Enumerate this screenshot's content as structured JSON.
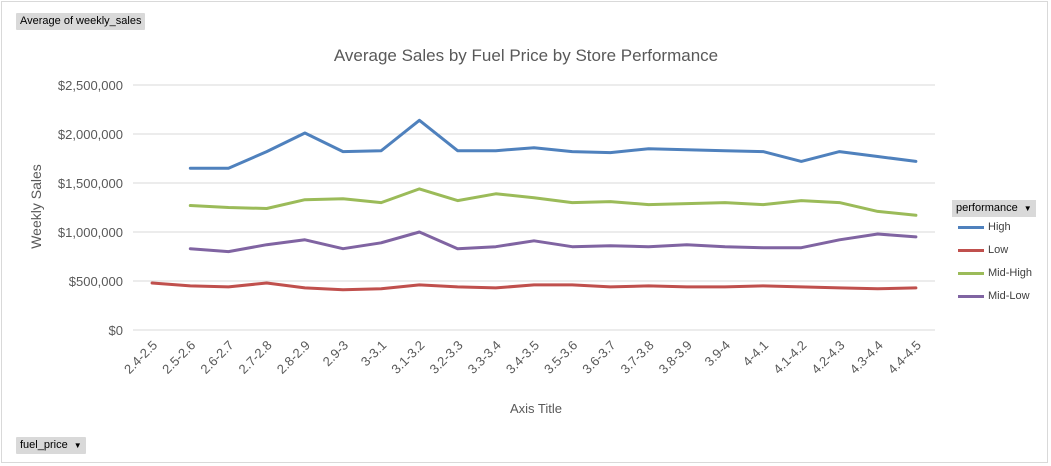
{
  "field_buttons": {
    "values_field": "Average of weekly_sales",
    "axis_field": "fuel_price",
    "legend_field": "performance",
    "dropdown_glyph": "▼"
  },
  "chart_data": {
    "type": "line",
    "title": "Average Sales by Fuel Price by Store Performance",
    "xlabel": "Axis Title",
    "ylabel": "Weekly Sales",
    "ylim": [
      0,
      2500000
    ],
    "yticks": [
      "$0",
      "$500,000",
      "$1,000,000",
      "$1,500,000",
      "$2,000,000",
      "$2,500,000"
    ],
    "ytick_values": [
      0,
      500000,
      1000000,
      1500000,
      2000000,
      2500000
    ],
    "grid": true,
    "legend_position": "right",
    "categories": [
      "2.4-2.5",
      "2.5-2.6",
      "2.6-2.7",
      "2.7-2.8",
      "2.8-2.9",
      "2.9-3",
      "3-3.1",
      "3.1-3.2",
      "3.2-3.3",
      "3.3-3.4",
      "3.4-3.5",
      "3.5-3.6",
      "3.6-3.7",
      "3.7-3.8",
      "3.8-3.9",
      "3.9-4",
      "4-4.1",
      "4.1-4.2",
      "4.2-4.3",
      "4.3-4.4",
      "4.4-4.5"
    ],
    "series": [
      {
        "name": "High",
        "color": "#4f81bd",
        "values": [
          null,
          1650000,
          1650000,
          1820000,
          2010000,
          1820000,
          1830000,
          2140000,
          1830000,
          1830000,
          1860000,
          1820000,
          1810000,
          1850000,
          1840000,
          1830000,
          1820000,
          1720000,
          1820000,
          1770000,
          1720000
        ]
      },
      {
        "name": "Low",
        "color": "#c0504d",
        "values": [
          480000,
          450000,
          440000,
          480000,
          430000,
          410000,
          420000,
          460000,
          440000,
          430000,
          460000,
          460000,
          440000,
          450000,
          440000,
          440000,
          450000,
          440000,
          430000,
          420000,
          430000
        ]
      },
      {
        "name": "Mid-High",
        "color": "#9bbb59",
        "values": [
          null,
          1270000,
          1250000,
          1240000,
          1330000,
          1340000,
          1300000,
          1440000,
          1320000,
          1390000,
          1350000,
          1300000,
          1310000,
          1280000,
          1290000,
          1300000,
          1280000,
          1320000,
          1300000,
          1210000,
          1170000
        ]
      },
      {
        "name": "Mid-Low",
        "color": "#8064a2",
        "values": [
          null,
          830000,
          800000,
          870000,
          920000,
          830000,
          890000,
          1000000,
          830000,
          850000,
          910000,
          850000,
          860000,
          850000,
          870000,
          850000,
          840000,
          840000,
          920000,
          980000,
          950000
        ]
      }
    ]
  }
}
